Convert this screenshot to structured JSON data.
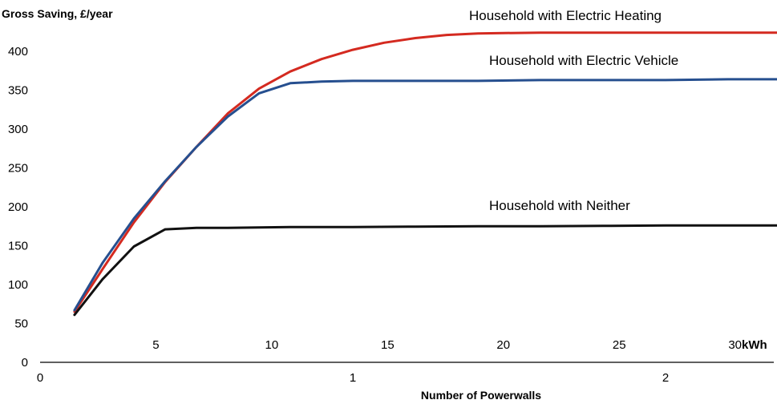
{
  "chart_data": {
    "type": "line",
    "title": "",
    "ylabel": "Gross Saving, £/year",
    "xlabel": "Number of Powerwalls",
    "ylim": [
      0,
      430
    ],
    "xlim": [
      0,
      2.4
    ],
    "yticks": [
      0,
      50,
      100,
      150,
      200,
      250,
      300,
      350,
      400
    ],
    "xticks": [
      0,
      1,
      2
    ],
    "secondary_x": {
      "unit": "kWh",
      "kwh_per_powerwall": 13.5,
      "ticks": [
        5,
        10,
        15,
        20,
        25,
        30
      ]
    },
    "grid": false,
    "legend": "none",
    "series": [
      {
        "name": "Household with Electric Heating",
        "color": "#d42a20",
        "x": [
          0.11,
          0.2,
          0.3,
          0.4,
          0.5,
          0.6,
          0.7,
          0.8,
          0.9,
          1.0,
          1.1,
          1.2,
          1.3,
          1.4,
          1.6,
          1.8,
          2.0,
          2.2,
          2.4
        ],
        "y": [
          65,
          120,
          180,
          232,
          277,
          320,
          352,
          374,
          390,
          402,
          411,
          417,
          421,
          423,
          424,
          424,
          424,
          424,
          424
        ]
      },
      {
        "name": "Household with Electric Vehicle",
        "color": "#264f8f",
        "x": [
          0.11,
          0.2,
          0.3,
          0.4,
          0.5,
          0.6,
          0.7,
          0.8,
          0.9,
          1.0,
          1.2,
          1.4,
          1.6,
          1.8,
          2.0,
          2.2,
          2.4
        ],
        "y": [
          67,
          128,
          185,
          233,
          277,
          316,
          346,
          359,
          361,
          362,
          362,
          362,
          363,
          363,
          363,
          364,
          364
        ]
      },
      {
        "name": "Household with Neither",
        "color": "#111111",
        "x": [
          0.11,
          0.2,
          0.3,
          0.4,
          0.5,
          0.6,
          0.8,
          1.0,
          1.2,
          1.4,
          1.6,
          1.8,
          2.0,
          2.2,
          2.4
        ],
        "y": [
          61,
          107,
          149,
          171,
          173,
          173,
          174,
          174,
          174.5,
          175,
          175,
          175.5,
          176,
          176,
          176
        ]
      }
    ]
  }
}
